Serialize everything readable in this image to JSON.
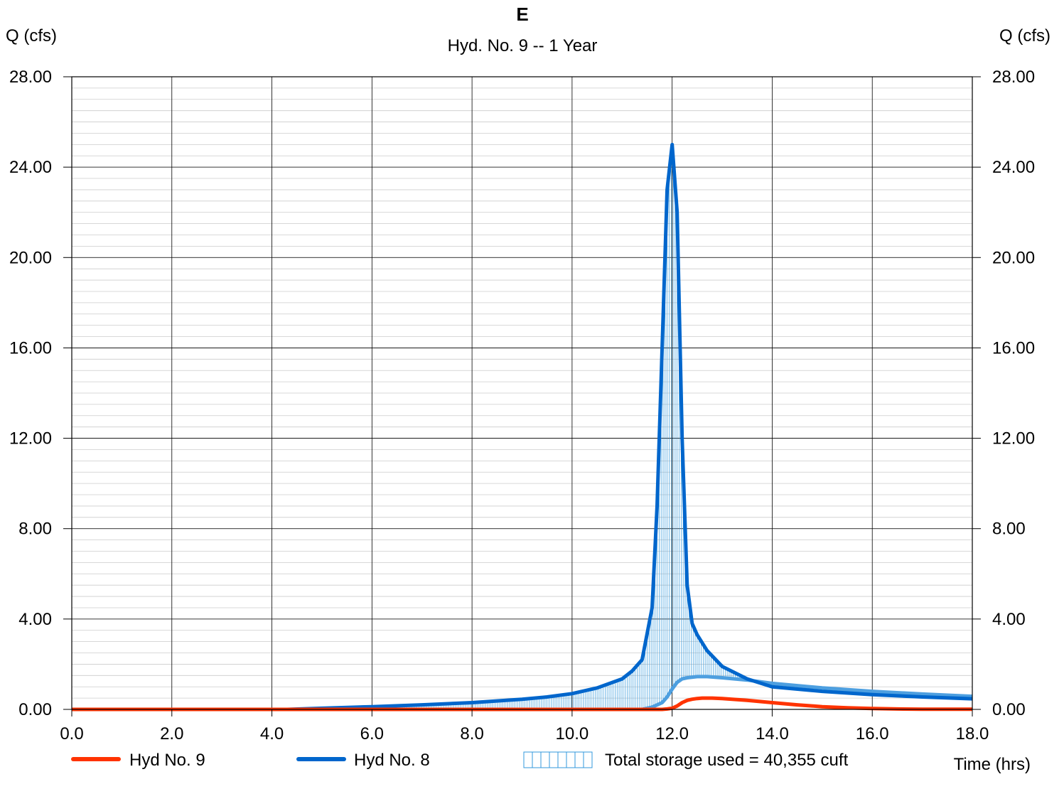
{
  "chart_data": {
    "type": "line",
    "title": "E",
    "subtitle": "Hyd. No. 9 -- 1 Year",
    "ylabel_left": "Q (cfs)",
    "ylabel_right": "Q (cfs)",
    "xlabel": "Time (hrs)",
    "xlim": [
      0,
      18
    ],
    "ylim": [
      0,
      28
    ],
    "x_ticks": [
      "0.0",
      "2.0",
      "4.0",
      "6.0",
      "8.0",
      "10.0",
      "12.0",
      "14.0",
      "16.0",
      "18.0"
    ],
    "y_ticks": [
      "0.00",
      "4.00",
      "8.00",
      "12.00",
      "16.00",
      "20.00",
      "24.00",
      "28.00"
    ],
    "grid": true,
    "legend_position": "bottom",
    "colors": {
      "hyd9": "#ff3300",
      "hyd8": "#0066cc",
      "storage": "#3399dd",
      "storage_top": "#4d9fe0"
    },
    "series": [
      {
        "name": "Hyd No. 9",
        "x": [
          0,
          11.8,
          11.9,
          12.0,
          12.1,
          12.2,
          12.3,
          12.4,
          12.5,
          12.6,
          12.8,
          13.0,
          13.5,
          14.0,
          14.5,
          15.0,
          15.5,
          16.0,
          16.5,
          17.0,
          18.0
        ],
        "y": [
          0,
          0,
          0.02,
          0.05,
          0.15,
          0.3,
          0.4,
          0.45,
          0.48,
          0.5,
          0.5,
          0.48,
          0.4,
          0.3,
          0.2,
          0.12,
          0.07,
          0.04,
          0.02,
          0.01,
          0.01
        ]
      },
      {
        "name": "Hyd No. 8",
        "x": [
          0,
          4.3,
          5.0,
          6.0,
          7.0,
          8.0,
          9.0,
          9.5,
          10.0,
          10.5,
          11.0,
          11.2,
          11.4,
          11.6,
          11.7,
          11.8,
          11.9,
          12.0,
          12.1,
          12.2,
          12.3,
          12.4,
          12.5,
          12.7,
          13.0,
          13.5,
          14.0,
          15.0,
          16.0,
          17.0,
          18.0
        ],
        "y": [
          0,
          0,
          0.05,
          0.12,
          0.2,
          0.3,
          0.45,
          0.55,
          0.7,
          0.95,
          1.35,
          1.7,
          2.2,
          4.5,
          9.0,
          16.0,
          23.0,
          25.0,
          22.0,
          12.0,
          5.5,
          3.8,
          3.3,
          2.6,
          1.9,
          1.35,
          1.0,
          0.8,
          0.65,
          0.55,
          0.47
        ]
      }
    ],
    "storage": {
      "label": "Total storage used = 40,355 cuft",
      "outflow_x": [
        0,
        11.4,
        11.6,
        11.8,
        11.9,
        12.0,
        12.1,
        12.2,
        12.3,
        12.5,
        12.7,
        13.0,
        13.5,
        14.0,
        15.0,
        16.0,
        17.0,
        18.0
      ],
      "outflow_y": [
        0,
        0,
        0.1,
        0.3,
        0.55,
        0.9,
        1.2,
        1.35,
        1.4,
        1.45,
        1.45,
        1.4,
        1.3,
        1.15,
        0.95,
        0.8,
        0.68,
        0.58
      ]
    }
  }
}
